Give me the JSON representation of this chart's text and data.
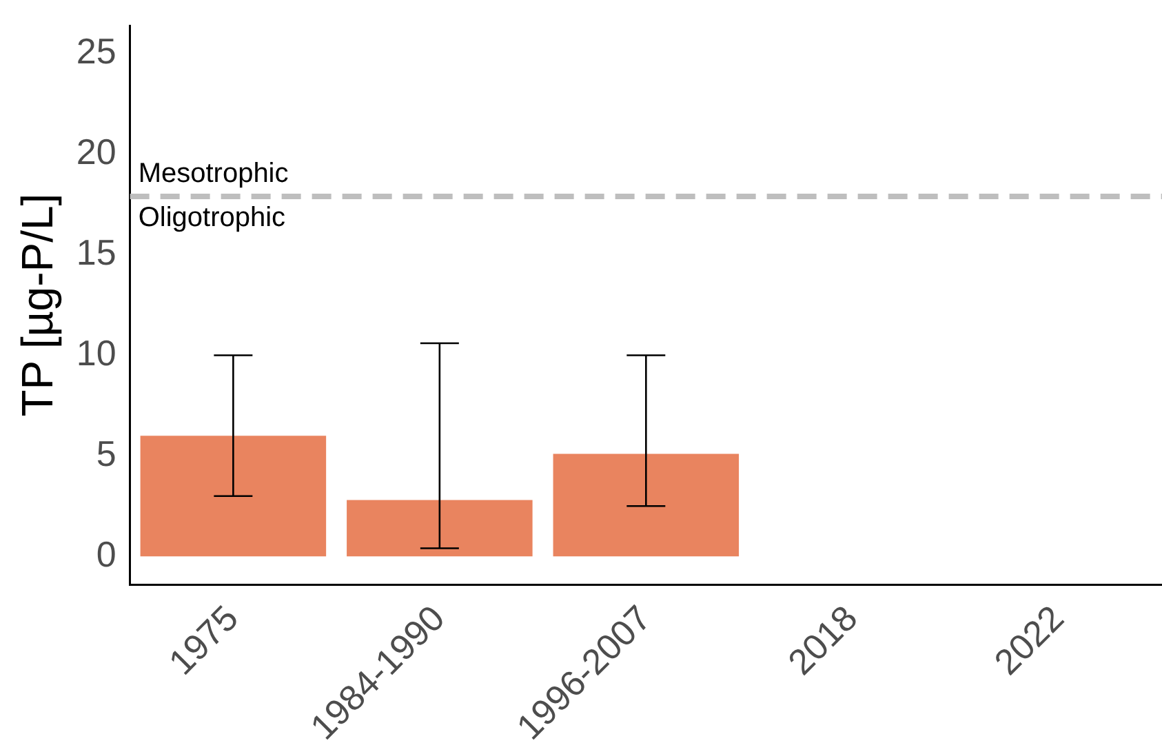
{
  "chart_data": {
    "type": "bar",
    "ylabel": "TP [µg-P/L]",
    "categories": [
      "1975",
      "1984-1990",
      "1996-2007",
      "2018",
      "2022"
    ],
    "values": [
      6.0,
      2.8,
      5.1,
      null,
      null
    ],
    "color": "#e9845f",
    "errors": [
      [
        3.0,
        10.0
      ],
      [
        0.4,
        10.6
      ],
      [
        2.5,
        10.0
      ],
      null,
      null
    ],
    "ylim": [
      -1.4,
      26.4
    ],
    "yticks": [
      0,
      5,
      10,
      15,
      20,
      25
    ],
    "ref_lines": [
      {
        "axis": "y",
        "value": 17.9,
        "color": "#bebebe",
        "line_style": "dashed"
      }
    ],
    "annotations": [
      "Mesotrophic",
      "Oligotrophic"
    ],
    "grid": false,
    "legend": false
  }
}
